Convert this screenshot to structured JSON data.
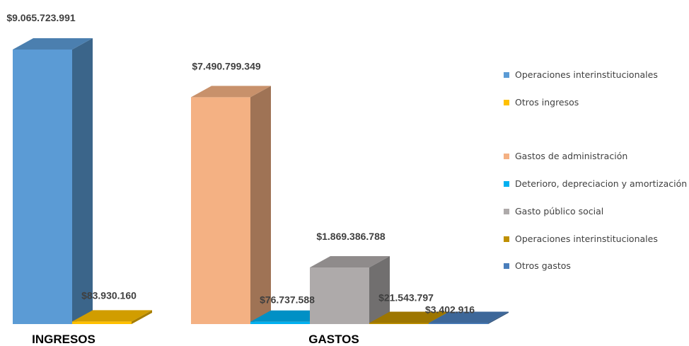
{
  "chart_data": {
    "type": "bar",
    "categories": [
      "INGRESOS",
      "GASTOS"
    ],
    "groups": [
      {
        "category": "INGRESOS",
        "bars": [
          {
            "name": "Operaciones interinstitucionales",
            "value": 9065723991,
            "label": "$9.065.723.991",
            "color": "#5B9BD5"
          },
          {
            "name": "Otros ingresos",
            "value": 83930160,
            "label": "$83.930.160",
            "color": "#FFC000"
          }
        ]
      },
      {
        "category": "GASTOS",
        "bars": [
          {
            "name": "Gastos de administración",
            "value": 7490799349,
            "label": "$7.490.799.349",
            "color": "#F4B183"
          },
          {
            "name": "Deterioro, depreciacion y amortización",
            "value": 76737588,
            "label": "$76.737.588",
            "color": "#00B0F0"
          },
          {
            "name": "Gasto público social",
            "value": 1869386788,
            "label": "$1.869.386.788",
            "color": "#AEAAAA"
          },
          {
            "name": "Operaciones interinstitucionales",
            "value": 21543797,
            "label": "$21.543.797",
            "color": "#BF9000"
          },
          {
            "name": "Otros gastos",
            "value": 3402916,
            "label": "$3.402.916",
            "color": "#4A7EBB"
          }
        ]
      }
    ],
    "legend": [
      {
        "name": "Operaciones interinstitucionales",
        "color": "#5B9BD5"
      },
      {
        "name": "Otros ingresos",
        "color": "#FFC000"
      },
      {
        "name": "Gastos de administración",
        "color": "#F4B183"
      },
      {
        "name": "Deterioro, depreciacion y amortización",
        "color": "#00B0F0"
      },
      {
        "name": "Gasto público social",
        "color": "#AEAAAA"
      },
      {
        "name": "Operaciones interinstitucionales",
        "color": "#BF9000"
      },
      {
        "name": "Otros gastos",
        "color": "#4A7EBB"
      }
    ],
    "legend_position": "right",
    "grid": false,
    "three_d": true,
    "ylim": [
      0,
      9065723991
    ]
  }
}
